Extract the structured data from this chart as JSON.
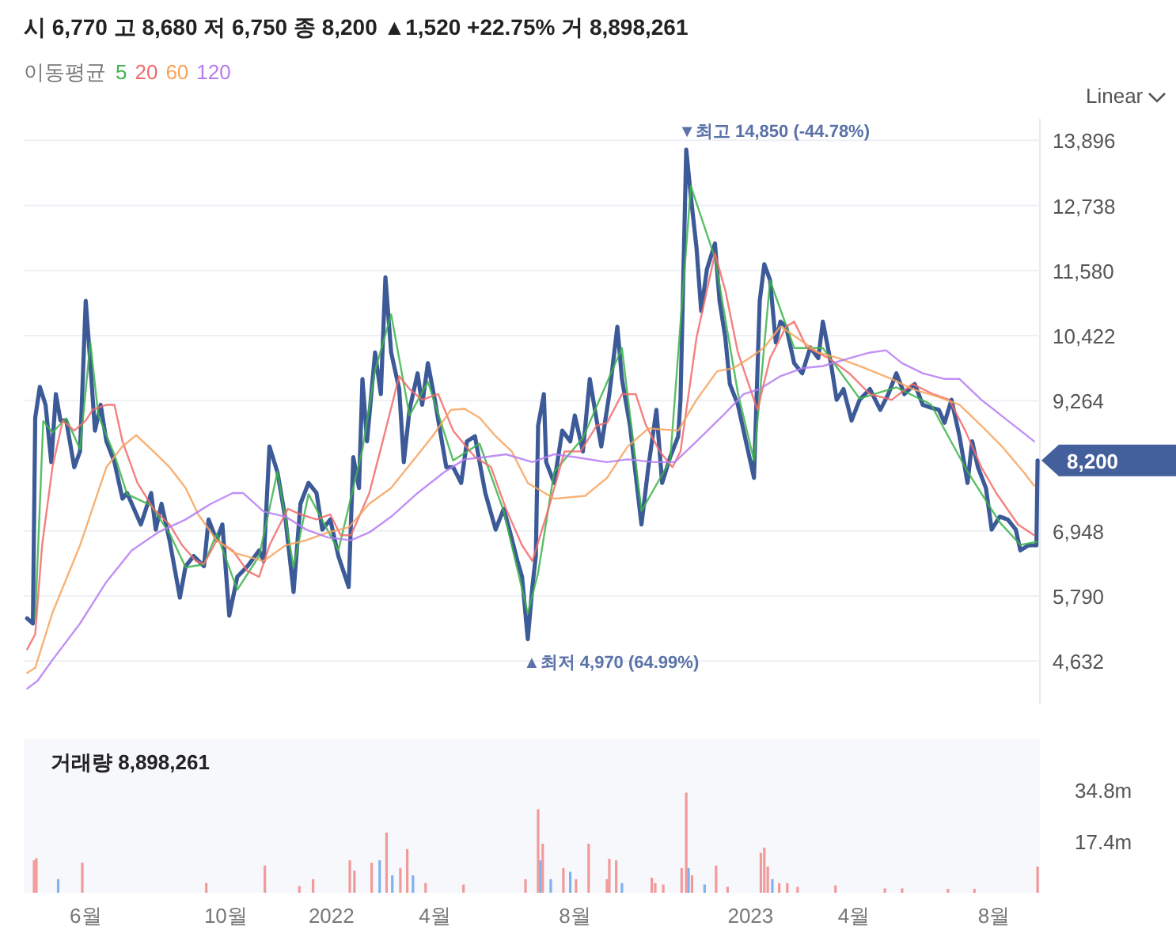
{
  "chart_data": [
    {
      "type": "line",
      "title": "시 6,770 고 8,680 저 6,750 종 8,200 ▲1,520 +22.75% 거 8,898,261",
      "legend_title": "이동평균",
      "legend": "top left",
      "grid": "y",
      "tick_labels": "y",
      "xlim": [
        "2021-04-08",
        "2023-09-10"
      ],
      "ylim": [
        3860,
        14280
      ],
      "yticks": [
        {
          "value": 4632,
          "label": "4,632"
        },
        {
          "value": 5790,
          "label": "5,790"
        },
        {
          "value": 6948,
          "label": "6,948"
        },
        {
          "value": 9264,
          "label": "9,264"
        },
        {
          "value": 10422,
          "label": "10,422"
        },
        {
          "value": 11580,
          "label": "11,580"
        },
        {
          "value": 12738,
          "label": "12,738"
        },
        {
          "value": 13896,
          "label": "13,896"
        }
      ],
      "annotations": [
        "Linear",
        {
          "text": "▼최고 14,850 (-44.78%)",
          "x": "2022-11-06",
          "y": 13728
        },
        {
          "text": "▲최저 4,970 (64.99%)",
          "x": "2022-06-21",
          "y": 5021
        },
        {
          "text": "8,200",
          "x": "2023-09-08",
          "y": 8200
        }
      ],
      "series": [
        {
          "color": "#3d5a98",
          "x": [
            "2021-04-11",
            "2021-04-16",
            "2021-04-18",
            "2021-04-22",
            "2021-04-27",
            "2021-05-02",
            "2021-05-06",
            "2021-05-10",
            "2021-05-15",
            "2021-05-22",
            "2021-05-27",
            "2021-06-01",
            "2021-06-05",
            "2021-06-09",
            "2021-06-14",
            "2021-06-19",
            "2021-06-26",
            "2021-07-03",
            "2021-07-07",
            "2021-07-19",
            "2021-07-28",
            "2021-08-01",
            "2021-08-06",
            "2021-08-13",
            "2021-08-22",
            "2021-08-27",
            "2021-09-03",
            "2021-09-12",
            "2021-09-16",
            "2021-09-23",
            "2021-09-28",
            "2021-10-04",
            "2021-10-11",
            "2021-10-20",
            "2021-10-30",
            "2021-11-03",
            "2021-11-08",
            "2021-11-15",
            "2021-11-22",
            "2021-11-29",
            "2021-12-05",
            "2021-12-12",
            "2021-12-19",
            "2021-12-24",
            "2021-12-31",
            "2022-01-07",
            "2022-01-16",
            "2022-01-20",
            "2022-01-25",
            "2022-01-28",
            "2022-02-01",
            "2022-02-08",
            "2022-02-13",
            "2022-02-17",
            "2022-02-22",
            "2022-03-01",
            "2022-03-05",
            "2022-03-10",
            "2022-03-17",
            "2022-03-21",
            "2022-03-26",
            "2022-04-01",
            "2022-04-11",
            "2022-04-17",
            "2022-04-24",
            "2022-04-29",
            "2022-05-06",
            "2022-05-10",
            "2022-05-15",
            "2022-05-24",
            "2022-05-31",
            "2022-06-05",
            "2022-06-12",
            "2022-06-16",
            "2022-06-21",
            "2022-06-25",
            "2022-06-28",
            "2022-06-30",
            "2022-07-05",
            "2022-07-07",
            "2022-07-14",
            "2022-07-21",
            "2022-07-28",
            "2022-08-01",
            "2022-08-08",
            "2022-08-14",
            "2022-08-20",
            "2022-08-24",
            "2022-08-31",
            "2022-09-07",
            "2022-09-11",
            "2022-09-18",
            "2022-09-28",
            "2022-10-04",
            "2022-10-11",
            "2022-10-16",
            "2022-10-23",
            "2022-10-30",
            "2022-11-01",
            "2022-11-06",
            "2022-11-10",
            "2022-11-15",
            "2022-11-19",
            "2022-11-24",
            "2022-12-01",
            "2022-12-05",
            "2022-12-10",
            "2022-12-14",
            "2022-12-21",
            "2022-12-28",
            "2023-01-04",
            "2023-01-09",
            "2023-01-13",
            "2023-01-18",
            "2023-01-23",
            "2023-01-27",
            "2023-02-01",
            "2023-02-08",
            "2023-02-15",
            "2023-02-22",
            "2023-03-01",
            "2023-03-05",
            "2023-03-12",
            "2023-03-17",
            "2023-03-23",
            "2023-03-30",
            "2023-04-06",
            "2023-04-15",
            "2023-04-24",
            "2023-05-01",
            "2023-05-08",
            "2023-05-15",
            "2023-05-24",
            "2023-05-31",
            "2023-06-07",
            "2023-06-14",
            "2023-06-19",
            "2023-06-25",
            "2023-07-02",
            "2023-07-09",
            "2023-07-13",
            "2023-07-18",
            "2023-07-25",
            "2023-07-30",
            "2023-08-06",
            "2023-08-13",
            "2023-08-20",
            "2023-08-24",
            "2023-08-31",
            "2023-09-07",
            "2023-09-08"
          ],
          "values": [
            5390,
            5300,
            8960,
            9510,
            9190,
            8170,
            9380,
            8910,
            8910,
            8080,
            8360,
            11040,
            9930,
            8730,
            9190,
            8540,
            8170,
            7520,
            7620,
            7060,
            7620,
            6970,
            7430,
            6780,
            5760,
            6320,
            6500,
            6320,
            7150,
            6780,
            7060,
            5440,
            6130,
            6320,
            6600,
            6410,
            8450,
            7990,
            7150,
            5860,
            7430,
            7800,
            7620,
            6970,
            7150,
            6500,
            5950,
            8260,
            7710,
            9650,
            8540,
            10120,
            9380,
            11460,
            10120,
            9470,
            8170,
            9100,
            9750,
            9190,
            9930,
            9280,
            8080,
            8080,
            7800,
            8540,
            8630,
            8170,
            7620,
            6970,
            7340,
            6970,
            6410,
            6130,
            5020,
            5950,
            6500,
            8820,
            9380,
            8170,
            7800,
            8730,
            8540,
            9000,
            8360,
            9650,
            8910,
            8450,
            9380,
            10580,
            9650,
            8820,
            7060,
            8080,
            9100,
            7800,
            8260,
            8630,
            9280,
            13730,
            12900,
            11970,
            10860,
            11600,
            12060,
            11040,
            10390,
            9560,
            9190,
            8540,
            7890,
            11040,
            11690,
            11410,
            10300,
            10670,
            10580,
            9930,
            9750,
            10210,
            10020,
            10670,
            9930,
            9280,
            9470,
            8910,
            9280,
            9470,
            9100,
            9380,
            9750,
            9380,
            9560,
            9190,
            9140,
            9100,
            8870,
            9280,
            8630,
            7800,
            8540,
            8080,
            7710,
            6970,
            7200,
            7150,
            6970,
            6600,
            6690,
            6690,
            8200
          ]
        },
        {
          "name": "5",
          "color": "#3cb44b",
          "x": [
            "2021-04-18",
            "2021-04-25",
            "2021-05-03",
            "2021-05-15",
            "2021-05-27",
            "2021-06-05",
            "2021-06-12",
            "2021-06-26",
            "2021-07-07",
            "2021-07-28",
            "2021-08-13",
            "2021-08-27",
            "2021-09-12",
            "2021-09-23",
            "2021-10-11",
            "2021-10-30",
            "2021-11-15",
            "2021-11-29",
            "2021-12-12",
            "2022-01-07",
            "2022-01-28",
            "2022-02-08",
            "2022-02-22",
            "2022-03-10",
            "2022-03-26",
            "2022-04-17",
            "2022-05-10",
            "2022-05-31",
            "2022-06-21",
            "2022-06-30",
            "2022-07-14",
            "2022-08-08",
            "2022-09-11",
            "2022-09-28",
            "2022-10-23",
            "2022-11-10",
            "2022-12-01",
            "2022-12-21",
            "2023-01-04",
            "2023-01-18",
            "2023-02-08",
            "2023-03-05",
            "2023-04-06",
            "2023-05-08",
            "2023-06-07",
            "2023-07-09",
            "2023-08-06",
            "2023-08-24",
            "2023-09-07"
          ],
          "values": [
            5390,
            8900,
            8700,
            8950,
            8400,
            10300,
            9000,
            8300,
            7600,
            7400,
            6900,
            6300,
            6350,
            6900,
            5900,
            6500,
            8000,
            6300,
            7600,
            6600,
            8400,
            9800,
            10800,
            9000,
            9600,
            8200,
            8500,
            7300,
            5480,
            6200,
            8000,
            8600,
            10200,
            7300,
            8200,
            13080,
            11800,
            9400,
            8200,
            11400,
            10200,
            10200,
            9300,
            9500,
            9200,
            8000,
            7100,
            6700,
            6750
          ]
        },
        {
          "name": "20",
          "color": "#f26b6b",
          "x": [
            "2021-04-11",
            "2021-04-18",
            "2021-04-24",
            "2021-05-03",
            "2021-05-12",
            "2021-05-22",
            "2021-06-01",
            "2021-06-07",
            "2021-06-19",
            "2021-06-26",
            "2021-07-03",
            "2021-07-16",
            "2021-07-30",
            "2021-08-13",
            "2021-08-24",
            "2021-09-05",
            "2021-09-12",
            "2021-09-23",
            "2021-10-07",
            "2021-10-20",
            "2021-10-30",
            "2021-11-08",
            "2021-11-24",
            "2021-12-05",
            "2021-12-19",
            "2021-12-31",
            "2022-01-09",
            "2022-01-18",
            "2022-02-03",
            "2022-02-17",
            "2022-03-01",
            "2022-03-10",
            "2022-03-21",
            "2022-04-04",
            "2022-04-17",
            "2022-05-06",
            "2022-05-20",
            "2022-06-02",
            "2022-06-16",
            "2022-06-25",
            "2022-07-09",
            "2022-07-23",
            "2022-08-06",
            "2022-08-20",
            "2022-08-29",
            "2022-09-11",
            "2022-09-23",
            "2022-10-02",
            "2022-10-14",
            "2022-10-25",
            "2022-11-01",
            "2022-11-15",
            "2022-12-01",
            "2022-12-10",
            "2022-12-21",
            "2023-01-07",
            "2023-01-18",
            "2023-02-01",
            "2023-02-08",
            "2023-02-19",
            "2023-03-10",
            "2023-03-28",
            "2023-04-15",
            "2023-05-04",
            "2023-05-22",
            "2023-06-09",
            "2023-06-23",
            "2023-07-07",
            "2023-07-21",
            "2023-08-03",
            "2023-08-22",
            "2023-09-05"
          ],
          "values": [
            4840,
            5110,
            6690,
            8080,
            8910,
            8730,
            8910,
            9100,
            9190,
            9190,
            8540,
            7800,
            7340,
            7060,
            6690,
            6410,
            6360,
            6780,
            6600,
            6230,
            6130,
            6690,
            7340,
            7240,
            7150,
            7240,
            6870,
            6870,
            7620,
            8730,
            9700,
            9470,
            9280,
            9380,
            8730,
            8260,
            8080,
            7340,
            6690,
            6410,
            7340,
            8360,
            8360,
            8820,
            8870,
            9380,
            9380,
            8820,
            8360,
            8080,
            8360,
            10390,
            11880,
            11230,
            10120,
            9100,
            10020,
            10580,
            10670,
            10210,
            10020,
            9750,
            9380,
            9280,
            9560,
            9380,
            9280,
            8730,
            8080,
            7620,
            7060,
            6870
          ]
        },
        {
          "name": "60",
          "color": "#f7a35c",
          "x": [
            "2021-04-11",
            "2021-04-18",
            "2021-05-03",
            "2021-05-27",
            "2021-06-19",
            "2021-07-03",
            "2021-07-15",
            "2021-07-30",
            "2021-08-13",
            "2021-08-27",
            "2021-09-07",
            "2021-09-23",
            "2021-10-09",
            "2021-11-03",
            "2021-11-22",
            "2021-12-10",
            "2021-12-29",
            "2022-01-16",
            "2022-02-03",
            "2022-02-22",
            "2022-03-12",
            "2022-03-30",
            "2022-04-15",
            "2022-04-27",
            "2022-05-10",
            "2022-05-24",
            "2022-06-07",
            "2022-06-21",
            "2022-07-14",
            "2022-08-10",
            "2022-08-29",
            "2022-09-16",
            "2022-10-04",
            "2022-10-30",
            "2022-11-15",
            "2022-12-03",
            "2022-12-17",
            "2022-12-31",
            "2023-01-13",
            "2023-01-27",
            "2023-02-10",
            "2023-03-01",
            "2023-03-19",
            "2023-04-11",
            "2023-05-04",
            "2023-05-22",
            "2023-06-14",
            "2023-07-02",
            "2023-07-21",
            "2023-08-08",
            "2023-08-27",
            "2023-09-05"
          ],
          "values": [
            4420,
            4510,
            5490,
            6690,
            8080,
            8450,
            8650,
            8360,
            8080,
            7710,
            7240,
            6780,
            6550,
            6410,
            6690,
            6780,
            6920,
            7010,
            7430,
            7710,
            8170,
            8630,
            9100,
            9120,
            8960,
            8630,
            8360,
            7800,
            7520,
            7570,
            7890,
            8450,
            8770,
            8730,
            9280,
            9790,
            9840,
            10020,
            10210,
            10580,
            10390,
            10120,
            10020,
            9840,
            9650,
            9470,
            9330,
            9190,
            8820,
            8450,
            7990,
            7750
          ]
        },
        {
          "name": "120",
          "color": "#b57cf2",
          "x": [
            "2021-04-11",
            "2021-04-20",
            "2021-05-03",
            "2021-05-27",
            "2021-06-19",
            "2021-07-11",
            "2021-08-03",
            "2021-08-27",
            "2021-09-18",
            "2021-10-07",
            "2021-10-16",
            "2021-11-03",
            "2021-11-22",
            "2021-12-10",
            "2021-12-29",
            "2022-01-18",
            "2022-02-03",
            "2022-02-22",
            "2022-03-17",
            "2022-04-09",
            "2022-04-27",
            "2022-05-15",
            "2022-06-02",
            "2022-06-25",
            "2022-07-14",
            "2022-08-01",
            "2022-08-29",
            "2022-09-16",
            "2022-10-09",
            "2022-10-27",
            "2022-11-15",
            "2022-12-08",
            "2022-12-26",
            "2023-01-09",
            "2023-01-27",
            "2023-02-15",
            "2023-03-05",
            "2023-03-28",
            "2023-04-15",
            "2023-04-29",
            "2023-05-13",
            "2023-05-31",
            "2023-06-19",
            "2023-07-02",
            "2023-07-21",
            "2023-08-13",
            "2023-09-05"
          ],
          "values": [
            4140,
            4280,
            4650,
            5300,
            6040,
            6600,
            6920,
            7150,
            7430,
            7620,
            7620,
            7290,
            7200,
            6970,
            6830,
            6780,
            6920,
            7200,
            7620,
            7990,
            8220,
            8260,
            8310,
            8170,
            8310,
            8260,
            8170,
            8220,
            8170,
            8170,
            8540,
            9000,
            9380,
            9470,
            9700,
            9840,
            9880,
            10020,
            10120,
            10160,
            9930,
            9750,
            9650,
            9650,
            9280,
            8910,
            8540
          ]
        }
      ]
    },
    {
      "type": "bar",
      "title": "거래량 8,898,261",
      "grid": false,
      "xlim": [
        "2021-04-08",
        "2023-09-10"
      ],
      "ylim": [
        0,
        52000000
      ],
      "xticks": [
        {
          "value": "2021-06-01",
          "label": "6월"
        },
        {
          "value": "2021-10-01",
          "label": "10월"
        },
        {
          "value": "2022-01-01",
          "label": "2022"
        },
        {
          "value": "2022-04-01",
          "label": "4월"
        },
        {
          "value": "2022-08-01",
          "label": "8월"
        },
        {
          "value": "2023-01-01",
          "label": "2023"
        },
        {
          "value": "2023-04-01",
          "label": "4월"
        },
        {
          "value": "2023-08-01",
          "label": "8월"
        }
      ],
      "yticks": [
        {
          "value": 17400000,
          "label": "17.4m"
        },
        {
          "value": 34800000,
          "label": "34.8m"
        }
      ],
      "x": [
        "2021-04-17",
        "2021-04-19",
        "2021-05-08",
        "2021-05-29",
        "2021-09-14",
        "2021-11-04",
        "2021-12-04",
        "2021-12-16",
        "2022-01-17",
        "2022-01-21",
        "2022-02-05",
        "2022-02-12",
        "2022-02-18",
        "2022-02-23",
        "2022-03-02",
        "2022-03-08",
        "2022-03-13",
        "2022-03-24",
        "2022-04-26",
        "2022-06-19",
        "2022-06-30",
        "2022-07-02",
        "2022-07-04",
        "2022-07-11",
        "2022-07-22",
        "2022-07-28",
        "2022-08-02",
        "2022-08-13",
        "2022-08-29",
        "2022-08-31",
        "2022-09-06",
        "2022-09-11",
        "2022-10-07",
        "2022-10-10",
        "2022-10-17",
        "2022-11-02",
        "2022-11-06",
        "2022-11-08",
        "2022-11-11",
        "2022-11-22",
        "2022-12-02",
        "2022-12-12",
        "2023-01-10",
        "2023-01-13",
        "2023-01-16",
        "2023-01-20",
        "2023-01-26",
        "2023-02-02",
        "2023-02-11",
        "2023-03-16",
        "2023-04-28",
        "2023-05-13",
        "2023-06-22",
        "2023-07-15",
        "2023-09-08"
      ],
      "values": [
        11000000,
        11700000,
        4600000,
        10200000,
        3300000,
        9200000,
        2300000,
        4600000,
        11000000,
        7500000,
        10200000,
        11000000,
        20400000,
        5900000,
        8400000,
        14800000,
        5900000,
        3300000,
        2800000,
        4600000,
        28300000,
        11000000,
        16600000,
        4600000,
        8400000,
        7100000,
        4600000,
        16600000,
        4600000,
        11500000,
        11000000,
        3300000,
        5100000,
        3300000,
        2800000,
        8400000,
        33900000,
        8400000,
        5900000,
        2800000,
        9200000,
        2000000,
        13500000,
        15300000,
        8900000,
        4600000,
        3300000,
        3300000,
        2000000,
        2500000,
        1500000,
        1500000,
        1300000,
        1300000,
        8898261
      ],
      "colors": [
        "#f29a9a",
        "#f29a9a",
        "#7fb2ee",
        "#f29a9a",
        "#f29a9a",
        "#f29a9a",
        "#f29a9a",
        "#f29a9a",
        "#f29a9a",
        "#f29a9a",
        "#f29a9a",
        "#7fb2ee",
        "#f29a9a",
        "#7fb2ee",
        "#f29a9a",
        "#f29a9a",
        "#7fb2ee",
        "#f29a9a",
        "#f29a9a",
        "#f29a9a",
        "#f29a9a",
        "#7fb2ee",
        "#f29a9a",
        "#7fb2ee",
        "#f29a9a",
        "#7fb2ee",
        "#f29a9a",
        "#f29a9a",
        "#f29a9a",
        "#f29a9a",
        "#f29a9a",
        "#7fb2ee",
        "#f29a9a",
        "#f29a9a",
        "#f29a9a",
        "#f29a9a",
        "#f29a9a",
        "#7fb2ee",
        "#f29a9a",
        "#7fb2ee",
        "#f29a9a",
        "#f29a9a",
        "#f29a9a",
        "#f29a9a",
        "#f29a9a",
        "#7fb2ee",
        "#f29a9a",
        "#f29a9a",
        "#f29a9a",
        "#f29a9a",
        "#f29a9a",
        "#f29a9a",
        "#f29a9a",
        "#f29a9a",
        "#f29a9a"
      ]
    }
  ]
}
